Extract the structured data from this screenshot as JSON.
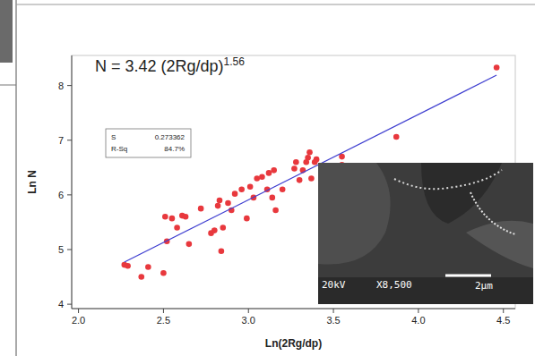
{
  "chart_data": {
    "type": "scatter",
    "x_label": "Ln(2Rg/dp)",
    "y_label": "Ln N",
    "xlim": [
      1.96,
      4.57
    ],
    "ylim": [
      3.92,
      8.55
    ],
    "xticks": [
      {
        "value": 2.0,
        "label": "2.0"
      },
      {
        "value": 2.5,
        "label": "2.5"
      },
      {
        "value": 3.0,
        "label": "3.0"
      },
      {
        "value": 3.5,
        "label": "3.5"
      },
      {
        "value": 4.0,
        "label": "4.0"
      },
      {
        "value": 4.5,
        "label": "4.5"
      }
    ],
    "yticks": [
      4,
      5,
      6,
      7,
      8
    ],
    "grid": false,
    "series": [
      {
        "type": "scatter",
        "color": "#e8383d",
        "marker": "circle",
        "x": [
          2.27,
          2.29,
          2.37,
          2.41,
          2.5,
          2.51,
          2.52,
          2.55,
          2.58,
          2.61,
          2.63,
          2.65,
          2.72,
          2.78,
          2.8,
          2.82,
          2.83,
          2.84,
          2.85,
          2.88,
          2.9,
          2.92,
          2.96,
          2.99,
          3.01,
          3.03,
          3.05,
          3.08,
          3.11,
          3.12,
          3.14,
          3.15,
          3.16,
          3.2,
          3.27,
          3.28,
          3.3,
          3.32,
          3.34,
          3.35,
          3.36,
          3.37,
          3.39,
          3.4,
          3.55,
          3.55,
          3.87,
          4.46
        ],
        "values": [
          4.72,
          4.7,
          4.5,
          4.68,
          4.57,
          5.6,
          5.15,
          5.57,
          5.4,
          5.62,
          5.6,
          5.1,
          5.75,
          5.3,
          5.35,
          5.8,
          5.9,
          4.97,
          5.4,
          5.85,
          5.72,
          6.02,
          6.1,
          5.57,
          6.15,
          5.95,
          6.3,
          6.33,
          6.1,
          6.4,
          5.95,
          6.45,
          5.72,
          6.1,
          6.48,
          6.6,
          6.27,
          6.45,
          6.6,
          6.68,
          6.78,
          6.3,
          6.6,
          6.65,
          6.7,
          6.55,
          7.06,
          8.33
        ]
      },
      {
        "type": "line",
        "color": "#3f3fd0",
        "line_style": "solid",
        "x": [
          2.27,
          4.46
        ],
        "values": [
          4.77,
          8.19
        ]
      }
    ],
    "annotations": {
      "equation": {
        "text": "N = 3.42 (2Rg/dp)",
        "exponent": "1.56"
      },
      "stats": [
        {
          "label": "S",
          "value": "0.273362"
        },
        {
          "label": "R-Sq",
          "value": "84.7%"
        }
      ]
    },
    "inset_image": {
      "texts": [
        "20kV",
        "X8,500",
        "2μm"
      ]
    }
  }
}
